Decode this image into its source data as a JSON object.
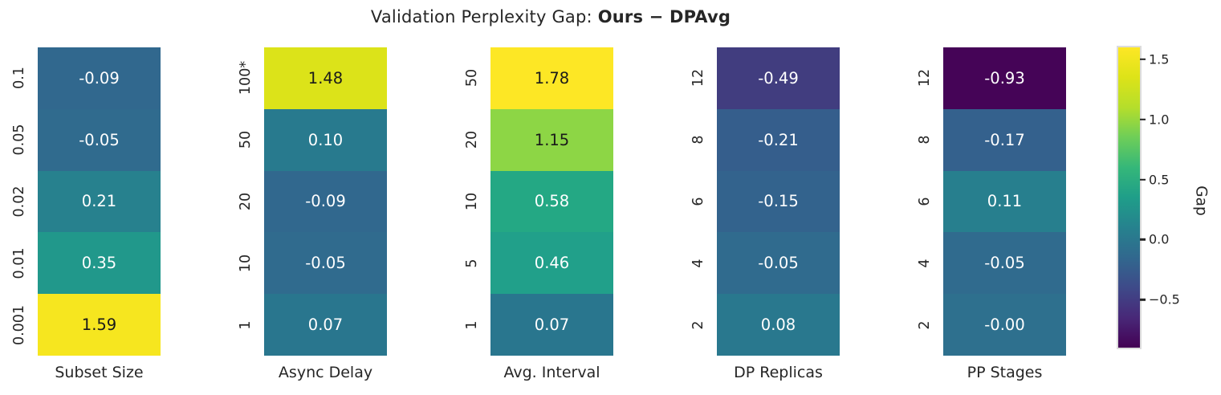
{
  "title": {
    "prefix": "Validation Perplexity Gap: ",
    "emphasis": "Ours − DPAvg"
  },
  "chart_data": {
    "type": "heatmap",
    "title": "Validation Perplexity Gap: Ours − DPAvg",
    "colormap": "viridis",
    "scale": {
      "vmin": -0.93,
      "vmax": 1.59,
      "grid": false,
      "annotations": true
    },
    "panels": [
      {
        "xlabel": "Subset Size",
        "categories": [
          "0.1",
          "0.05",
          "0.02",
          "0.01",
          "0.001"
        ],
        "values": [
          -0.09,
          -0.05,
          0.21,
          0.35,
          1.59
        ],
        "cells": [
          {
            "tick": "0.1",
            "label": "-0.09",
            "color": "#31688e",
            "text": "light"
          },
          {
            "tick": "0.05",
            "label": "-0.05",
            "color": "#306b8e",
            "text": "light"
          },
          {
            "tick": "0.02",
            "label": "0.21",
            "color": "#27818e",
            "text": "light"
          },
          {
            "tick": "0.01",
            "label": "0.35",
            "color": "#21988b",
            "text": "light"
          },
          {
            "tick": "0.001",
            "label": "1.59",
            "color": "#f6e61f",
            "text": "dark"
          }
        ]
      },
      {
        "xlabel": "Async Delay",
        "categories": [
          "100*",
          "50",
          "20",
          "10",
          "1"
        ],
        "values": [
          1.48,
          0.1,
          -0.09,
          -0.05,
          0.07
        ],
        "cells": [
          {
            "tick": "100*",
            "label": "1.48",
            "color": "#dce319",
            "text": "dark"
          },
          {
            "tick": "50",
            "label": "0.10",
            "color": "#287a8e",
            "text": "light"
          },
          {
            "tick": "20",
            "label": "-0.09",
            "color": "#31688e",
            "text": "light"
          },
          {
            "tick": "10",
            "label": "-0.05",
            "color": "#306b8e",
            "text": "light"
          },
          {
            "tick": "1",
            "label": "0.07",
            "color": "#29768e",
            "text": "light"
          }
        ]
      },
      {
        "xlabel": "Avg. Interval",
        "categories": [
          "50",
          "20",
          "10",
          "5",
          "1"
        ],
        "values": [
          1.78,
          1.15,
          0.58,
          0.46,
          0.07
        ],
        "cells": [
          {
            "tick": "50",
            "label": "1.78",
            "color": "#fde725",
            "text": "dark"
          },
          {
            "tick": "20",
            "label": "1.15",
            "color": "#8dd645",
            "text": "dark"
          },
          {
            "tick": "10",
            "label": "0.58",
            "color": "#24a884",
            "text": "light"
          },
          {
            "tick": "5",
            "label": "0.46",
            "color": "#21a08a",
            "text": "light"
          },
          {
            "tick": "1",
            "label": "0.07",
            "color": "#29768e",
            "text": "light"
          }
        ]
      },
      {
        "xlabel": "DP Replicas",
        "categories": [
          "12",
          "8",
          "6",
          "4",
          "2"
        ],
        "values": [
          -0.49,
          -0.21,
          -0.15,
          -0.05,
          0.08
        ],
        "cells": [
          {
            "tick": "12",
            "label": "-0.49",
            "color": "#413d7f",
            "text": "light"
          },
          {
            "tick": "8",
            "label": "-0.21",
            "color": "#355e8c",
            "text": "light"
          },
          {
            "tick": "6",
            "label": "-0.15",
            "color": "#33638d",
            "text": "light"
          },
          {
            "tick": "4",
            "label": "-0.05",
            "color": "#306b8e",
            "text": "light"
          },
          {
            "tick": "2",
            "label": "0.08",
            "color": "#29788e",
            "text": "light"
          }
        ]
      },
      {
        "xlabel": "PP Stages",
        "categories": [
          "12",
          "8",
          "6",
          "4",
          "2"
        ],
        "values": [
          -0.93,
          -0.17,
          0.11,
          -0.05,
          -0.0
        ],
        "cells": [
          {
            "tick": "12",
            "label": "-0.93",
            "color": "#450457",
            "text": "light"
          },
          {
            "tick": "8",
            "label": "-0.17",
            "color": "#34618d",
            "text": "light"
          },
          {
            "tick": "6",
            "label": "0.11",
            "color": "#277f8e",
            "text": "light"
          },
          {
            "tick": "4",
            "label": "-0.05",
            "color": "#306b8e",
            "text": "light"
          },
          {
            "tick": "2",
            "label": "-0.00",
            "color": "#2e708e",
            "text": "light"
          }
        ]
      }
    ],
    "colorbar": {
      "label": "Gap",
      "ticks": [
        {
          "label": "1.5",
          "pos": 4
        },
        {
          "label": "1.0",
          "pos": 24
        },
        {
          "label": "0.5",
          "pos": 44
        },
        {
          "label": "0.0",
          "pos": 64
        },
        {
          "label": "−0.5",
          "pos": 84
        }
      ],
      "gradient": [
        "#fde725",
        "#dde318",
        "#b5de2b",
        "#6ece58",
        "#35b779",
        "#1f9e89",
        "#26828e",
        "#31688e",
        "#3e4a89",
        "#482878",
        "#440154"
      ]
    },
    "layout": {
      "panel_lefts": [
        47,
        329,
        611,
        893,
        1175
      ],
      "legend_position": "right"
    }
  }
}
